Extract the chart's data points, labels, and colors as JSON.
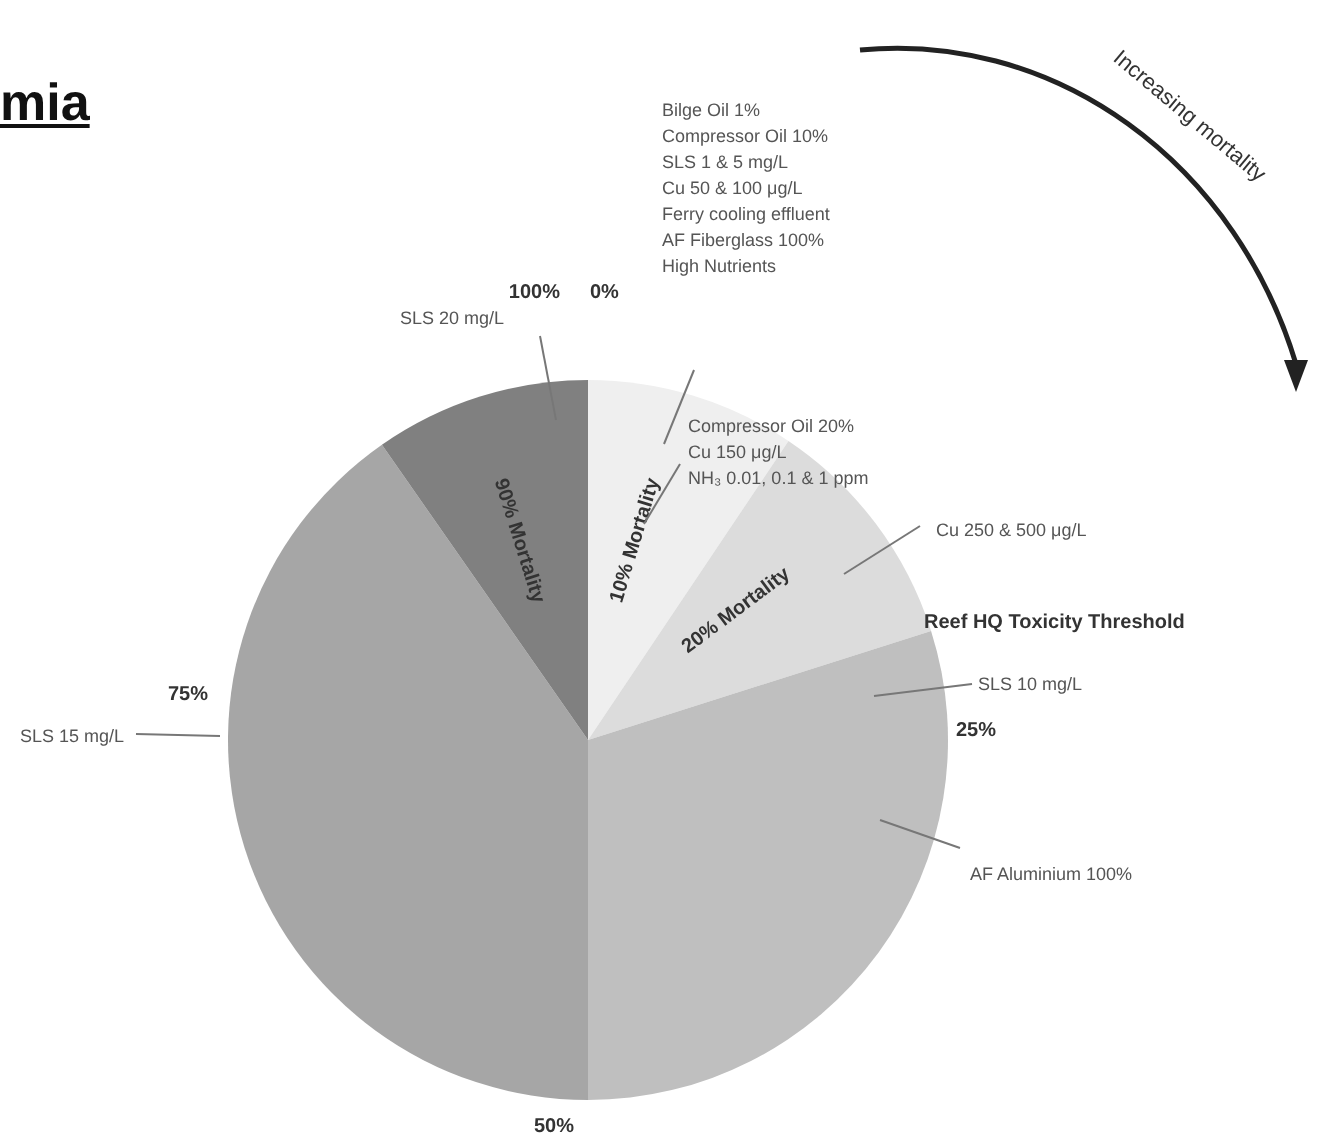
{
  "chart_data": {
    "type": "pie",
    "title": "mia",
    "categories": [
      "10% Mortality",
      "20% Mortality",
      null,
      null,
      "90% Mortality"
    ],
    "values": [
      9.4,
      10.7,
      29.9,
      40.3,
      9.7
    ],
    "colors": [
      "#efefef",
      "#dcdcdc",
      "#bfbfbf",
      "#a6a6a6",
      "#808080"
    ],
    "annotations": [
      "Increasing mortality",
      "Bilge Oil 1%\nCompressor Oil 10%\nSLS 1 & 5 mg/L\nCu 50 & 100 μg/L\nFerry cooling effluent\nAF Fiberglass 100%\nHigh Nutrients",
      "Compressor Oil 20%\nCu 150 μg/L\nNH₃ 0.01, 0.1 & 1 ppm",
      "Cu 250 & 500 μg/L",
      "Reef HQ Toxicity Threshold",
      "SLS 10 mg/L",
      "AF Aluminium 100%",
      "SLS 15 mg/L",
      "SLS 20 mg/L",
      "0%",
      "25%",
      "50%",
      "75%",
      "100%"
    ]
  }
}
